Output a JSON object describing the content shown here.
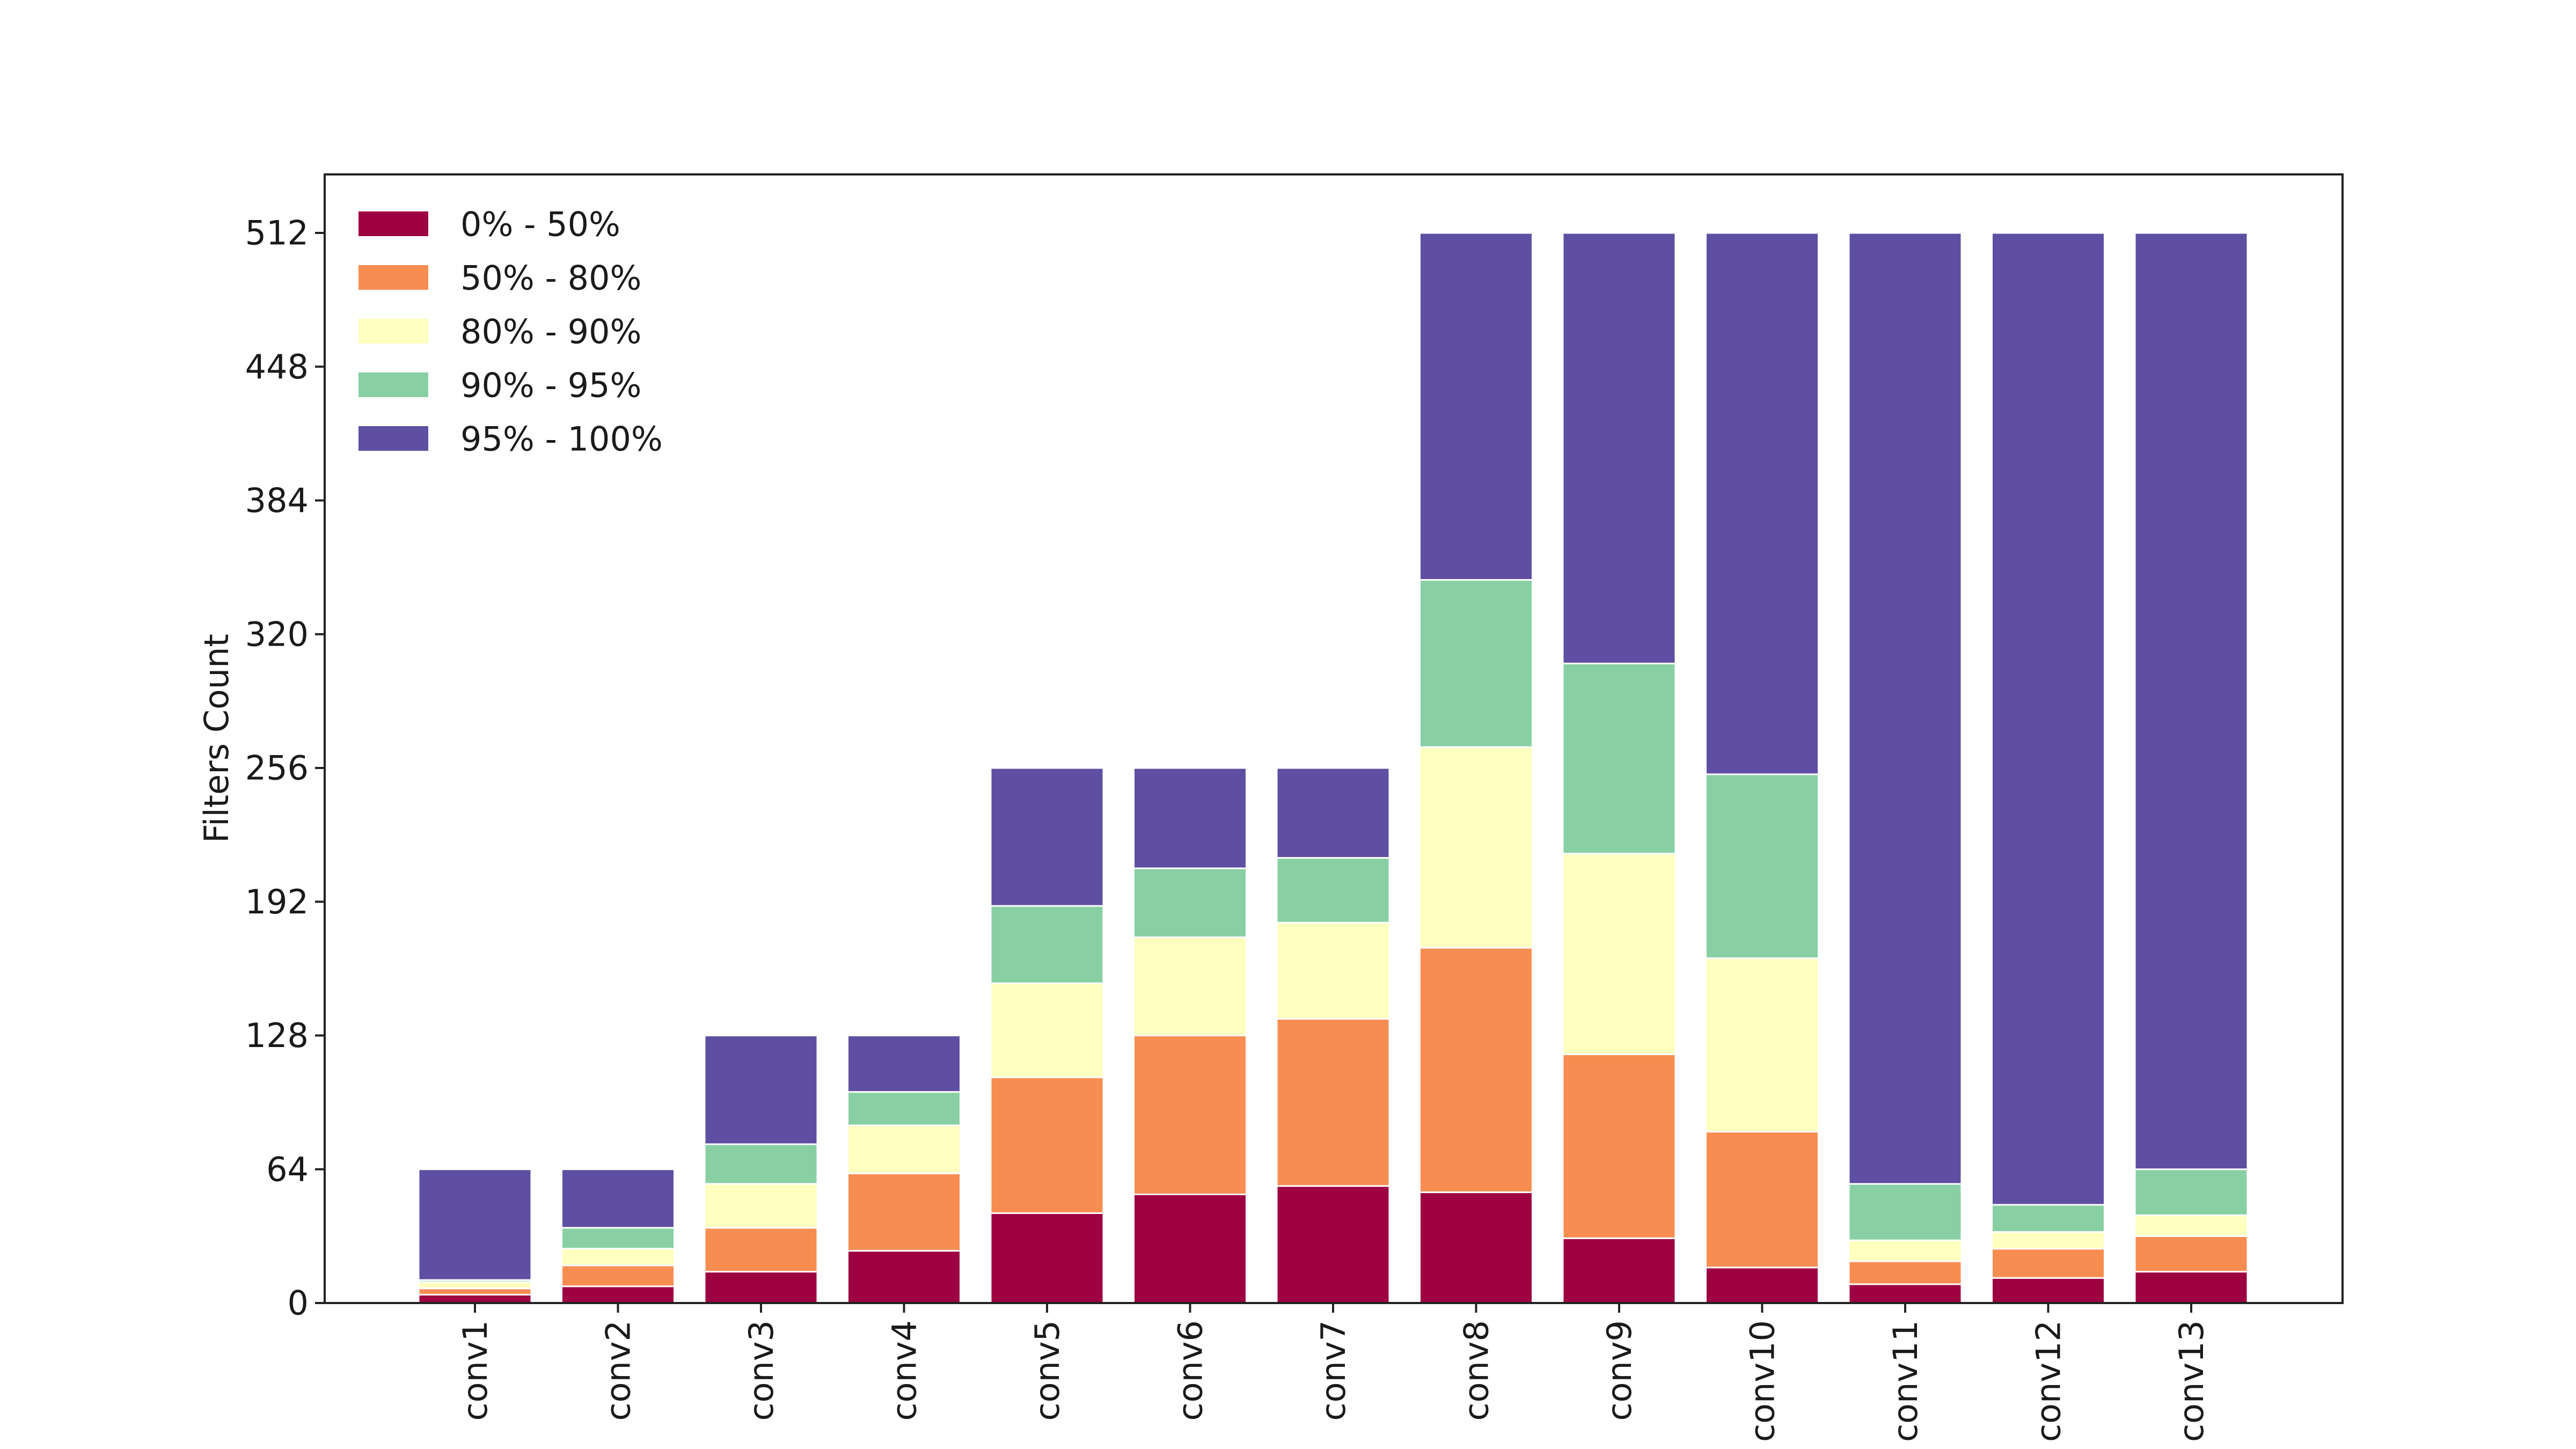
{
  "chart_data": {
    "type": "bar",
    "stacked": true,
    "title": "",
    "xlabel": "",
    "ylabel": "Filters Count",
    "ylim": [
      0,
      540
    ],
    "yticks": [
      0,
      64,
      128,
      192,
      256,
      320,
      384,
      448,
      512
    ],
    "grid": false,
    "legend_position": "top-left",
    "categories": [
      "conv1",
      "conv2",
      "conv3",
      "conv4",
      "conv5",
      "conv6",
      "conv7",
      "conv8",
      "conv9",
      "conv10",
      "conv11",
      "conv12",
      "conv13"
    ],
    "series": [
      {
        "name": "0% - 50%",
        "color": "#9e0142",
        "values": [
          4,
          8,
          15,
          25,
          43,
          52,
          56,
          53,
          31,
          17,
          9,
          12,
          15
        ]
      },
      {
        "name": "50% - 80%",
        "color": "#f88d52",
        "values": [
          3,
          10,
          21,
          37,
          65,
          76,
          80,
          117,
          88,
          65,
          11,
          14,
          17
        ]
      },
      {
        "name": "80% - 90%",
        "color": "#ffffbf",
        "values": [
          3,
          8,
          21,
          23,
          45,
          47,
          46,
          96,
          96,
          83,
          10,
          8,
          10
        ]
      },
      {
        "name": "90% - 95%",
        "color": "#88d0a4",
        "values": [
          1,
          10,
          19,
          16,
          37,
          33,
          31,
          80,
          91,
          88,
          27,
          13,
          22
        ]
      },
      {
        "name": "95% - 100%",
        "color": "#5e4fa2",
        "values": [
          53,
          28,
          52,
          27,
          66,
          48,
          43,
          166,
          206,
          259,
          455,
          465,
          448
        ]
      }
    ]
  }
}
